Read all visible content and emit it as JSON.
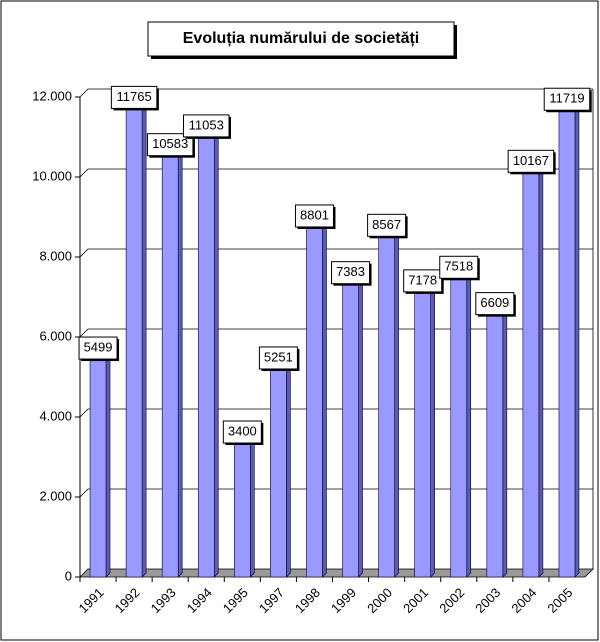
{
  "chart_data": {
    "type": "bar3d",
    "title": "Evoluția numărului de societăți",
    "categories": [
      "1991",
      "1992",
      "1993",
      "1994",
      "1995",
      "1997",
      "1998",
      "1999",
      "2000",
      "2001",
      "2002",
      "2003",
      "2004",
      "2005"
    ],
    "values": [
      5499,
      11765,
      10583,
      11053,
      3400,
      5251,
      8801,
      7383,
      8567,
      7178,
      7518,
      6609,
      10167,
      11719
    ],
    "color": "#9999ff",
    "ylim": [
      0,
      12000
    ],
    "yticks": [
      0,
      {
        "value": 2000,
        "label": "2.000"
      },
      {
        "value": 4000,
        "label": "4.000"
      },
      {
        "value": 6000,
        "label": "6.000"
      },
      {
        "value": 8000,
        "label": "8.000"
      },
      {
        "value": 10000,
        "label": "10.000"
      },
      {
        "value": 12000,
        "label": "12.000"
      }
    ],
    "grid": true
  }
}
